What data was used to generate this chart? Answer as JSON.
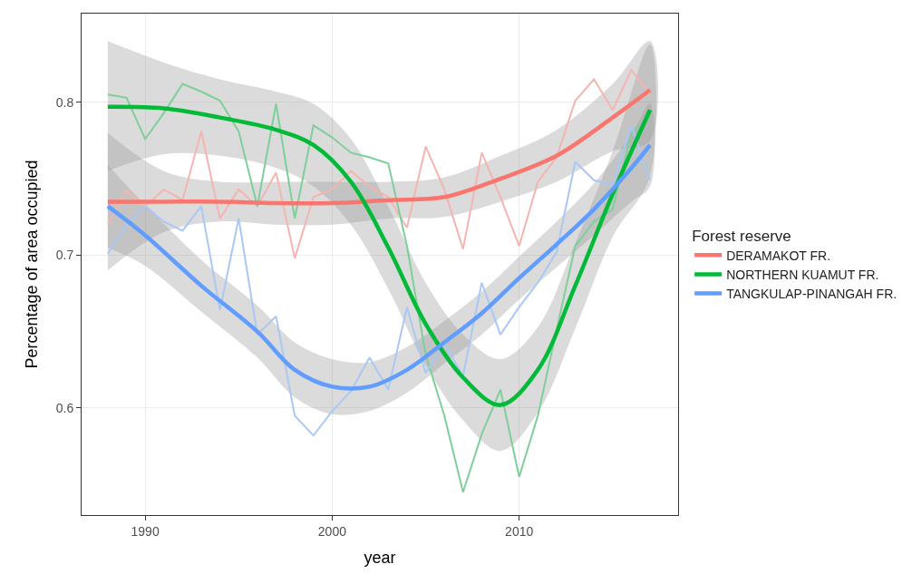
{
  "chart_data": {
    "type": "line",
    "xlabel": "year",
    "ylabel": "Percentage of area occupied",
    "legend_title": "Forest reserve",
    "x": [
      1988,
      1989,
      1990,
      1991,
      1992,
      1993,
      1994,
      1995,
      1996,
      1997,
      1998,
      1999,
      2000,
      2001,
      2002,
      2003,
      2004,
      2005,
      2006,
      2007,
      2008,
      2009,
      2010,
      2011,
      2012,
      2013,
      2014,
      2015,
      2016,
      2017
    ],
    "series": [
      {
        "color": "#f4b5b0",
        "values": [
          0.72,
          0.742,
          0.732,
          0.743,
          0.736,
          0.781,
          0.724,
          0.743,
          0.732,
          0.754,
          0.698,
          0.738,
          0.743,
          0.755,
          0.745,
          0.738,
          0.718,
          0.771,
          0.743,
          0.704,
          0.767,
          0.738,
          0.706,
          0.748,
          0.764,
          0.801,
          0.815,
          0.795,
          0.821,
          0.805
        ]
      },
      {
        "color": "#7fcf9a",
        "values": [
          0.805,
          0.803,
          0.776,
          0.793,
          0.812,
          0.807,
          0.801,
          0.781,
          0.732,
          0.799,
          0.724,
          0.785,
          0.777,
          0.767,
          0.764,
          0.76,
          0.706,
          0.635,
          0.595,
          0.545,
          0.583,
          0.612,
          0.555,
          0.595,
          0.651,
          0.706,
          0.722,
          0.73,
          0.78,
          0.79
        ]
      },
      {
        "color": "#a9c8f5",
        "values": [
          0.701,
          0.72,
          0.732,
          0.722,
          0.716,
          0.732,
          0.664,
          0.724,
          0.648,
          0.66,
          0.595,
          0.582,
          0.598,
          0.611,
          0.633,
          0.612,
          0.666,
          0.623,
          0.642,
          0.621,
          0.682,
          0.648,
          0.666,
          0.682,
          0.702,
          0.761,
          0.749,
          0.746,
          0.785,
          0.749
        ]
      },
      {
        "name": "DERAMAKOT FR.",
        "color": "#f8766d",
        "x": [
          1988,
          1991,
          1994,
          1997,
          2000,
          2003,
          2006,
          2009,
          2012,
          2015,
          2017
        ],
        "values": [
          0.735,
          0.735,
          0.735,
          0.734,
          0.734,
          0.736,
          0.738,
          0.75,
          0.765,
          0.79,
          0.808
        ],
        "lower": [
          0.69,
          0.715,
          0.722,
          0.72,
          0.72,
          0.724,
          0.725,
          0.735,
          0.748,
          0.768,
          0.775
        ],
        "upper": [
          0.78,
          0.755,
          0.748,
          0.748,
          0.748,
          0.748,
          0.751,
          0.765,
          0.782,
          0.812,
          0.84
        ]
      },
      {
        "name": "NORTHERN KUAMUT FR.",
        "color": "#00ba38",
        "x": [
          1988,
          1991,
          1994,
          1997,
          1999,
          2001,
          2003,
          2005,
          2007,
          2009,
          2011,
          2013,
          2015,
          2017
        ],
        "values": [
          0.797,
          0.796,
          0.79,
          0.782,
          0.772,
          0.748,
          0.705,
          0.655,
          0.62,
          0.602,
          0.625,
          0.68,
          0.74,
          0.795
        ],
        "lower": [
          0.755,
          0.766,
          0.765,
          0.757,
          0.745,
          0.72,
          0.678,
          0.628,
          0.592,
          0.572,
          0.597,
          0.652,
          0.712,
          0.752
        ],
        "upper": [
          0.84,
          0.826,
          0.815,
          0.807,
          0.799,
          0.776,
          0.732,
          0.682,
          0.648,
          0.632,
          0.653,
          0.708,
          0.768,
          0.838
        ]
      },
      {
        "name": "TANGKULAP-PINANGAH FR.",
        "color": "#619cff",
        "x": [
          1988,
          1990,
          1993,
          1996,
          1998,
          2000,
          2002,
          2004,
          2006,
          2008,
          2010,
          2012,
          2014,
          2016,
          2017
        ],
        "values": [
          0.732,
          0.713,
          0.68,
          0.65,
          0.625,
          0.614,
          0.614,
          0.625,
          0.643,
          0.662,
          0.685,
          0.707,
          0.73,
          0.757,
          0.772
        ],
        "lower": [
          0.705,
          0.693,
          0.663,
          0.633,
          0.607,
          0.596,
          0.598,
          0.61,
          0.629,
          0.648,
          0.671,
          0.692,
          0.713,
          0.735,
          0.745
        ],
        "upper": [
          0.759,
          0.733,
          0.697,
          0.667,
          0.643,
          0.632,
          0.63,
          0.64,
          0.657,
          0.676,
          0.699,
          0.722,
          0.747,
          0.779,
          0.799
        ]
      }
    ],
    "xlim": [
      1986.6,
      2018.5
    ],
    "ylim": [
      0.53,
      0.858
    ],
    "xticks": [
      1990,
      2000,
      2010
    ],
    "yticks": [
      0.6,
      0.7,
      0.8
    ],
    "grid": true,
    "legend": "right",
    "marker": "none",
    "line_style": "solid"
  }
}
